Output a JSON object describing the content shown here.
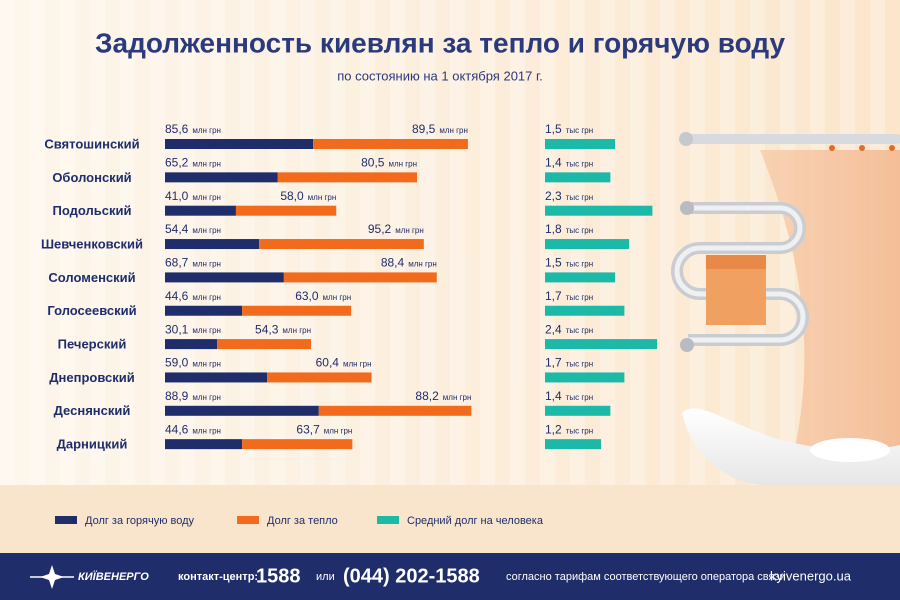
{
  "chart_data": [
    {
      "type": "stacked-bar",
      "title": "Задолженность киевлян за тепло и горячую воду",
      "subtitle": "по состоянию на 1 октября 2017 г.",
      "categories": [
        "Святошинский",
        "Оболонский",
        "Подольский",
        "Шевченковский",
        "Соломенский",
        "Голосеевский",
        "Печерский",
        "Днепровский",
        "Деснянский",
        "Дарницкий"
      ],
      "unit": "млн грн",
      "series": [
        {
          "name": "Долг за горячую воду",
          "color": "#1f2d6b",
          "values": [
            85.6,
            65.2,
            41.0,
            54.4,
            68.7,
            44.6,
            30.1,
            59.0,
            88.9,
            44.6
          ],
          "value_labels": [
            "85,6",
            "65,2",
            "41,0",
            "54,4",
            "68,7",
            "44,6",
            "30,1",
            "59,0",
            "88,9",
            "44,6"
          ]
        },
        {
          "name": "Долг за тепло",
          "color": "#f26a1b",
          "values": [
            89.5,
            80.5,
            58.0,
            95.2,
            88.4,
            63.0,
            54.3,
            60.4,
            88.2,
            63.7
          ],
          "value_labels": [
            "89,5",
            "80,5",
            "58,0",
            "95,2",
            "88,4",
            "63,0",
            "54,3",
            "60,4",
            "88,2",
            "63,7"
          ]
        }
      ]
    },
    {
      "type": "bar",
      "unit": "тыс грн",
      "series": [
        {
          "name": "Средний долг на человека",
          "color": "#1cb8a8",
          "values": [
            1.5,
            1.4,
            2.3,
            1.8,
            1.5,
            1.7,
            2.4,
            1.7,
            1.4,
            1.2
          ],
          "value_labels": [
            "1,5",
            "1,4",
            "2,3",
            "1,8",
            "1,5",
            "1,7",
            "2,4",
            "1,7",
            "1,4",
            "1,2"
          ]
        }
      ]
    }
  ],
  "footer": {
    "brand": "КИЇВЕНЕРГО",
    "contact_label": "контакт-центр:",
    "short_number": "1588",
    "or": "или",
    "phone": "(044) 202-1588",
    "note": "согласно тарифам соответствующего оператора связи",
    "site": "kyivenergo.ua"
  }
}
